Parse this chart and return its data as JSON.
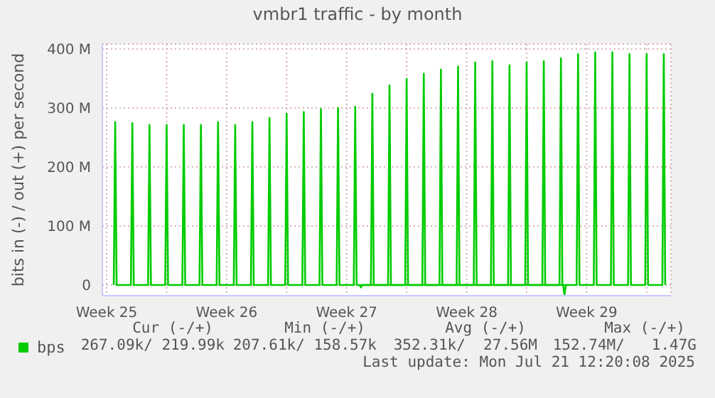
{
  "chart_data": {
    "type": "line",
    "title": "vmbr1 traffic - by month",
    "ylabel": "bits in (-) / out (+) per second",
    "series": [
      {
        "name": "bps",
        "color": "#00cc00",
        "x": [
          "2025-06-19T22:00",
          "2025-06-20T00:00",
          "2025-06-20T02:00",
          "2025-06-20T22:00",
          "2025-06-21T00:00",
          "2025-06-21T02:00",
          "2025-06-21T22:00",
          "2025-06-22T00:00",
          "2025-06-22T02:00",
          "2025-06-22T22:00",
          "2025-06-23T00:00",
          "2025-06-23T02:00",
          "2025-06-23T22:00",
          "2025-06-24T00:00",
          "2025-06-24T02:00",
          "2025-06-24T22:00",
          "2025-06-25T00:00",
          "2025-06-25T02:00",
          "2025-06-25T22:00",
          "2025-06-26T00:00",
          "2025-06-26T02:00",
          "2025-06-26T22:00",
          "2025-06-27T00:00",
          "2025-06-27T02:00",
          "2025-06-27T22:00",
          "2025-06-28T00:00",
          "2025-06-28T02:00",
          "2025-06-28T22:00",
          "2025-06-29T00:00",
          "2025-06-29T02:00",
          "2025-06-29T22:00",
          "2025-06-30T00:00",
          "2025-06-30T02:00",
          "2025-06-30T22:00",
          "2025-07-01T00:00",
          "2025-07-01T02:00",
          "2025-07-01T22:00",
          "2025-07-02T00:00",
          "2025-07-02T02:00",
          "2025-07-02T22:00",
          "2025-07-03T00:00",
          "2025-07-03T02:00",
          "2025-07-03T22:00",
          "2025-07-04T00:00",
          "2025-07-04T02:00",
          "2025-07-04T22:00",
          "2025-07-05T00:00",
          "2025-07-05T02:00",
          "2025-07-05T22:00",
          "2025-07-06T00:00",
          "2025-07-06T02:00",
          "2025-07-06T22:00",
          "2025-07-07T00:00",
          "2025-07-07T02:00",
          "2025-07-07T22:00",
          "2025-07-08T00:00",
          "2025-07-08T02:00",
          "2025-07-08T22:00",
          "2025-07-09T00:00",
          "2025-07-09T02:00",
          "2025-07-09T22:00",
          "2025-07-10T00:00",
          "2025-07-10T02:00",
          "2025-07-10T22:00",
          "2025-07-11T00:00",
          "2025-07-11T02:00",
          "2025-07-11T22:00",
          "2025-07-12T00:00",
          "2025-07-12T02:00",
          "2025-07-12T22:00",
          "2025-07-13T00:00",
          "2025-07-13T02:00",
          "2025-07-13T22:00",
          "2025-07-14T00:00",
          "2025-07-14T02:00",
          "2025-07-14T22:00",
          "2025-07-15T00:00",
          "2025-07-15T02:00",
          "2025-07-15T22:00",
          "2025-07-16T00:00",
          "2025-07-16T02:00",
          "2025-07-16T22:00",
          "2025-07-17T00:00",
          "2025-07-17T02:00",
          "2025-07-17T22:00",
          "2025-07-18T00:00",
          "2025-07-18T02:00",
          "2025-07-18T22:00",
          "2025-07-19T00:00",
          "2025-07-19T02:00",
          "2025-07-19T22:00",
          "2025-07-20T00:00",
          "2025-07-20T02:00",
          "2025-07-20T22:00",
          "2025-07-21T00:00",
          "2025-07-21T02:00",
          "2025-07-21T22:00",
          "2025-07-22T00:00",
          "2025-07-22T02:00"
        ],
        "values": [
          0,
          276,
          0,
          0,
          274,
          0,
          0,
          271,
          0,
          0,
          271,
          0,
          0,
          271,
          0,
          0,
          271,
          0,
          0,
          276,
          0,
          0,
          271,
          0,
          0,
          276,
          0,
          0,
          283,
          0,
          0,
          290,
          0,
          0,
          293,
          0,
          0,
          298,
          0,
          0,
          300,
          0,
          0,
          302,
          0,
          0,
          324,
          0,
          0,
          338,
          0,
          0,
          349,
          0,
          0,
          358,
          0,
          0,
          365,
          0,
          0,
          370,
          0,
          0,
          377,
          0,
          0,
          379,
          0,
          0,
          372,
          0,
          0,
          377,
          0,
          0,
          379,
          0,
          0,
          384,
          0,
          0,
          391,
          0,
          0,
          394,
          0,
          0,
          394,
          0,
          0,
          391,
          0,
          0,
          391,
          0,
          0,
          391,
          0
        ]
      },
      {
        "color": "#00cc00",
        "x": [
          "2025-07-04T06:00",
          "2025-07-04T08:00",
          "2025-07-04T10:00",
          "2025-07-16T03:00",
          "2025-07-16T05:00",
          "2025-07-16T07:00"
        ],
        "values": [
          0,
          -4,
          0,
          0,
          -17,
          0
        ]
      }
    ],
    "xlim": [
      "2025-06-19T06:00",
      "2025-07-22T10:00"
    ],
    "xticks": [
      {
        "value": "2025-06-19T12:00",
        "label": "Week 25"
      },
      {
        "value": "2025-06-23T00:00",
        "label": null
      },
      {
        "value": "2025-06-26T12:00",
        "label": "Week 26"
      },
      {
        "value": "2025-06-30T00:00",
        "label": null
      },
      {
        "value": "2025-07-03T12:00",
        "label": "Week 27"
      },
      {
        "value": "2025-07-07T00:00",
        "label": null
      },
      {
        "value": "2025-07-10T12:00",
        "label": "Week 28"
      },
      {
        "value": "2025-07-14T00:00",
        "label": null
      },
      {
        "value": "2025-07-17T12:00",
        "label": "Week 29"
      },
      {
        "value": "2025-07-21T00:00",
        "label": null
      }
    ],
    "ylim": [
      -18,
      408
    ],
    "yticks": [
      {
        "value": 0,
        "label": "0"
      },
      {
        "value": 100,
        "label": "100 M"
      },
      {
        "value": 200,
        "label": "200 M"
      },
      {
        "value": 300,
        "label": "300 M"
      },
      {
        "value": 400,
        "label": "400 M"
      }
    ],
    "grid": true,
    "legend": "bottom left",
    "marker": "none",
    "line_style": "solid",
    "annotations": [
      "Cur (-/+)",
      "Min (-/+)",
      "Avg (-/+)",
      "Max (-/+)",
      "267.09k/ 219.99k",
      "207.61k/ 158.57k",
      "352.31k/  27.56M",
      "152.74M/   1.47G",
      "Last update: Mon Jul 21 12:20:08 2025"
    ]
  }
}
